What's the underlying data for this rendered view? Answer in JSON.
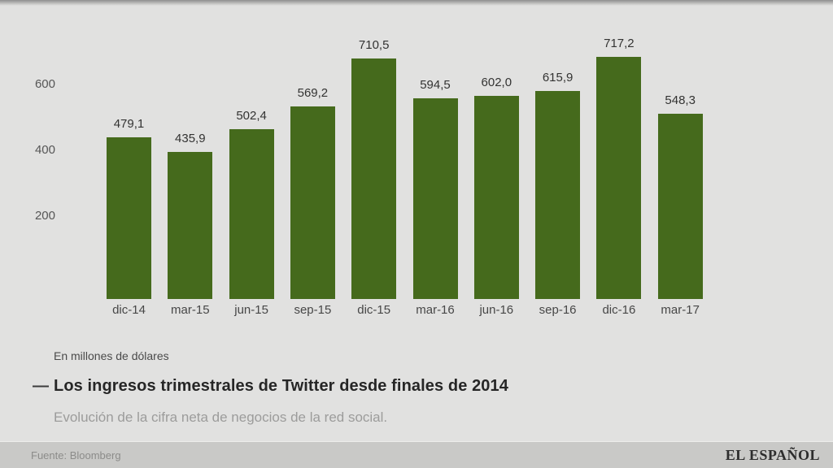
{
  "chart_data": {
    "type": "bar",
    "title": "Los ingresos trimestrales de Twitter desde finales de 2014",
    "title_dash": "—",
    "unit_note": "En millones de dólares",
    "subtitle": "Evolución de la cifra neta de negocios de la red social.",
    "categories": [
      "dic-14",
      "mar-15",
      "jun-15",
      "sep-15",
      "dic-15",
      "mar-16",
      "jun-16",
      "sep-16",
      "dic-16",
      "mar-17"
    ],
    "values": [
      479.1,
      435.9,
      502.4,
      569.2,
      710.5,
      594.5,
      602.0,
      615.9,
      717.2,
      548.3
    ],
    "value_labels": [
      "479,1",
      "435,9",
      "502,4",
      "569,2",
      "710,5",
      "594,5",
      "602,0",
      "615,9",
      "717,2",
      "548,3"
    ],
    "yticks": [
      200,
      400,
      600
    ],
    "ylim": [
      0,
      760
    ],
    "xlabel": "",
    "ylabel": "",
    "grid": false,
    "legend": "none",
    "bar_color": "#456a1c"
  },
  "footer": {
    "source": "Fuente: Bloomberg",
    "brand": "EL ESPAÑOL"
  },
  "colors": {
    "background": "#e1e1e0",
    "bar": "#456a1c",
    "footer_background": "#c9c9c7",
    "title_text": "#262626",
    "subtitle_text": "#9c9c9b",
    "axis_text": "#565656"
  }
}
